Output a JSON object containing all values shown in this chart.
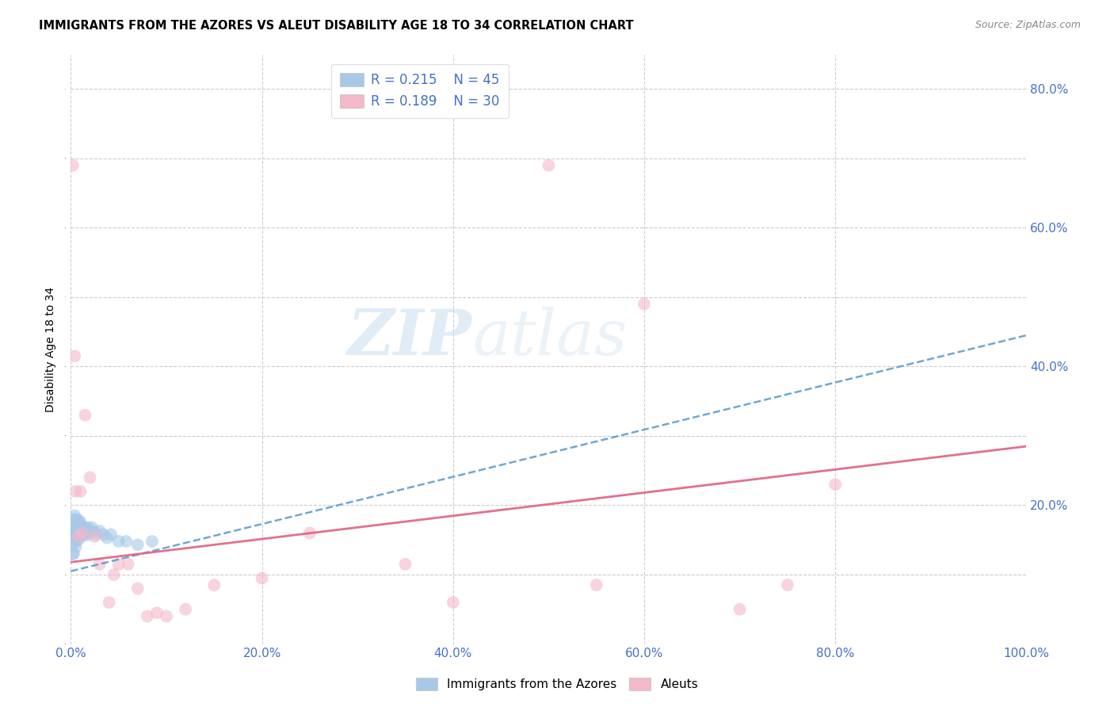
{
  "title": "IMMIGRANTS FROM THE AZORES VS ALEUT DISABILITY AGE 18 TO 34 CORRELATION CHART",
  "source": "Source: ZipAtlas.com",
  "ylabel": "Disability Age 18 to 34",
  "xlim": [
    0,
    1.0
  ],
  "ylim": [
    0,
    0.85
  ],
  "x_tick_vals": [
    0.0,
    0.2,
    0.4,
    0.6,
    0.8,
    1.0
  ],
  "x_tick_labels": [
    "0.0%",
    "20.0%",
    "40.0%",
    "60.0%",
    "80.0%",
    "100.0%"
  ],
  "y_tick_vals": [
    0.0,
    0.2,
    0.4,
    0.6,
    0.8
  ],
  "y_tick_labels": [
    "",
    "20.0%",
    "40.0%",
    "60.0%",
    "80.0%"
  ],
  "legend_r1": "R = 0.215",
  "legend_n1": "N = 45",
  "legend_r2": "R = 0.189",
  "legend_n2": "N = 30",
  "legend_label1": "Immigrants from the Azores",
  "legend_label2": "Aleuts",
  "color_blue": "#a8c8e8",
  "color_pink": "#f4b8c8",
  "trendline_blue_color": "#5599cc",
  "trendline_pink_color": "#e06080",
  "watermark_zip": "ZIP",
  "watermark_atlas": "atlas",
  "blue_x": [
    0.001,
    0.002,
    0.002,
    0.002,
    0.003,
    0.003,
    0.003,
    0.003,
    0.004,
    0.004,
    0.004,
    0.005,
    0.005,
    0.005,
    0.006,
    0.006,
    0.006,
    0.007,
    0.007,
    0.008,
    0.008,
    0.009,
    0.009,
    0.01,
    0.01,
    0.011,
    0.012,
    0.013,
    0.014,
    0.015,
    0.016,
    0.017,
    0.018,
    0.02,
    0.022,
    0.024,
    0.026,
    0.03,
    0.034,
    0.038,
    0.042,
    0.05,
    0.058,
    0.07,
    0.085
  ],
  "blue_y": [
    0.16,
    0.175,
    0.155,
    0.13,
    0.18,
    0.165,
    0.145,
    0.13,
    0.185,
    0.17,
    0.15,
    0.175,
    0.16,
    0.14,
    0.18,
    0.168,
    0.148,
    0.172,
    0.155,
    0.178,
    0.158,
    0.172,
    0.152,
    0.176,
    0.156,
    0.17,
    0.165,
    0.162,
    0.158,
    0.168,
    0.163,
    0.157,
    0.168,
    0.162,
    0.168,
    0.162,
    0.158,
    0.163,
    0.158,
    0.153,
    0.158,
    0.148,
    0.148,
    0.143,
    0.148
  ],
  "pink_x": [
    0.002,
    0.004,
    0.005,
    0.008,
    0.01,
    0.012,
    0.015,
    0.02,
    0.025,
    0.03,
    0.04,
    0.045,
    0.05,
    0.06,
    0.07,
    0.08,
    0.09,
    0.1,
    0.12,
    0.15,
    0.2,
    0.25,
    0.35,
    0.4,
    0.5,
    0.55,
    0.6,
    0.7,
    0.75,
    0.8
  ],
  "pink_y": [
    0.69,
    0.415,
    0.22,
    0.155,
    0.22,
    0.16,
    0.33,
    0.24,
    0.155,
    0.115,
    0.06,
    0.1,
    0.115,
    0.115,
    0.08,
    0.04,
    0.045,
    0.04,
    0.05,
    0.085,
    0.095,
    0.16,
    0.115,
    0.06,
    0.69,
    0.085,
    0.49,
    0.05,
    0.085,
    0.23
  ],
  "blue_trend_x0": 0.0,
  "blue_trend_y0": 0.105,
  "blue_trend_x1": 1.0,
  "blue_trend_y1": 0.445,
  "pink_trend_x0": 0.0,
  "pink_trend_y0": 0.118,
  "pink_trend_x1": 1.0,
  "pink_trend_y1": 0.285
}
